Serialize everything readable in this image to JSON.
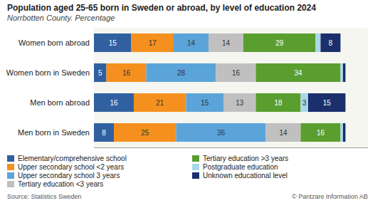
{
  "chart_data": {
    "type": "bar",
    "orientation": "horizontal",
    "stacked": true,
    "title": "Population aged 25-65 born in Sweden or abroad, by level of education 2024",
    "subtitle": "Norrbotten County. Percentage",
    "annotations": [
      "Source: Statistics Sweden",
      "© Pantzare Information AB"
    ],
    "categories": [
      "Women born abroad",
      "Women born in Sweden",
      "Men born abroad",
      "Men born in Sweden"
    ],
    "series": [
      {
        "name": "Elementary/comprehensive school",
        "color": "#3060A0",
        "values": [
          15,
          5,
          16,
          8
        ]
      },
      {
        "name": "Upper secondary school <2 years",
        "color": "#F5901E",
        "values": [
          17,
          16,
          21,
          25
        ]
      },
      {
        "name": "Upper secondary school 3 years",
        "color": "#5BA4D9",
        "values": [
          14,
          28,
          15,
          36
        ]
      },
      {
        "name": "Tertiary education <3 years",
        "color": "#C0C0C0",
        "values": [
          14,
          16,
          13,
          14
        ]
      },
      {
        "name": "Tertiary education >3 years",
        "color": "#5A9E2F",
        "values": [
          29,
          34,
          18,
          16
        ]
      },
      {
        "name": "Postgraduate education",
        "color": "#A8D8EA",
        "values": [
          2,
          1,
          3,
          1
        ]
      },
      {
        "name": "Unknown educational level",
        "color": "#1A2F6B",
        "values": [
          8,
          1,
          15,
          1
        ]
      }
    ],
    "xlim": [
      0,
      110
    ],
    "grid": false,
    "legend": "bottom",
    "data_labels": true,
    "tick_labels": "y"
  }
}
